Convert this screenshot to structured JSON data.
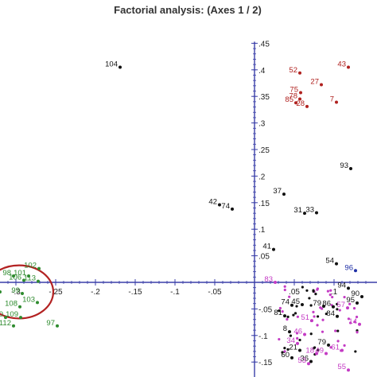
{
  "chart_data": {
    "type": "scatter",
    "title": "Factorial analysis: (Axes 1 / 2)",
    "xlabel": "",
    "ylabel": "",
    "xlim": [
      -0.32,
      0.145
    ],
    "ylim": [
      -0.15,
      0.45
    ],
    "x_ticks": [
      {
        "v": -0.3,
        "t": "-.3"
      },
      {
        "v": -0.25,
        "t": "-.25"
      },
      {
        "v": -0.2,
        "t": "-.2"
      },
      {
        "v": -0.15,
        "t": "-.15"
      },
      {
        "v": -0.1,
        "t": "-.1"
      },
      {
        "v": -0.05,
        "t": "-.05"
      },
      {
        "v": 0.05,
        "t": ".05"
      },
      {
        "v": 0.1,
        "t": ".1"
      }
    ],
    "y_ticks": [
      {
        "v": 0.45,
        "t": ".45"
      },
      {
        "v": 0.4,
        "t": ".4"
      },
      {
        "v": 0.35,
        "t": ".35"
      },
      {
        "v": 0.3,
        "t": ".3"
      },
      {
        "v": 0.25,
        "t": ".25"
      },
      {
        "v": 0.2,
        "t": ".2"
      },
      {
        "v": 0.15,
        "t": ".15"
      },
      {
        "v": 0.1,
        "t": ".1"
      },
      {
        "v": 0.05,
        "t": ".05"
      },
      {
        "v": -0.05,
        "t": "-.05"
      },
      {
        "v": -0.1,
        "t": "-.1"
      },
      {
        "v": -0.15,
        "t": "-.15"
      }
    ],
    "grid": false,
    "colors": {
      "black": "#111111",
      "red": "#b0211f",
      "green": "#2e8b2e",
      "magenta": "#c43bc4",
      "blue": "#1f2fa6",
      "axis": "#3a3fa8",
      "ellipse": "#b32222"
    },
    "ellipse": {
      "cx": -0.296,
      "cy": -0.018,
      "rx": 0.043,
      "ry": 0.05
    },
    "series": [
      {
        "color": "black",
        "points": [
          {
            "x": -0.169,
            "y": 0.405,
            "label": "104"
          },
          {
            "x": -0.044,
            "y": 0.146,
            "label": "42"
          },
          {
            "x": -0.028,
            "y": 0.138,
            "label": "74"
          },
          {
            "x": 0.024,
            "y": 0.062,
            "label": "41"
          },
          {
            "x": 0.037,
            "y": 0.166,
            "label": "37"
          },
          {
            "x": 0.063,
            "y": 0.13,
            "label": "31"
          },
          {
            "x": 0.078,
            "y": 0.131,
            "label": "33"
          },
          {
            "x": 0.121,
            "y": 0.214,
            "label": "93"
          },
          {
            "x": 0.103,
            "y": 0.035,
            "label": "54"
          },
          {
            "x": 0.118,
            "y": -0.011,
            "label": "94"
          },
          {
            "x": 0.135,
            "y": -0.027,
            "label": "90"
          },
          {
            "x": 0.129,
            "y": -0.039,
            "label": "95"
          },
          {
            "x": 0.038,
            "y": -0.063,
            "label": "81"
          },
          {
            "x": 0.047,
            "y": -0.043,
            "label": "74"
          },
          {
            "x": 0.06,
            "y": -0.042,
            "label": "45"
          },
          {
            "x": 0.087,
            "y": -0.045,
            "label": "79"
          },
          {
            "x": 0.099,
            "y": -0.046,
            "label": "86"
          },
          {
            "x": 0.104,
            "y": -0.064,
            "label": "84"
          },
          {
            "x": 0.044,
            "y": -0.093,
            "label": "8"
          },
          {
            "x": 0.093,
            "y": -0.118,
            "label": "79"
          },
          {
            "x": 0.047,
            "y": -0.142,
            "label": "60"
          },
          {
            "x": 0.057,
            "y": -0.128,
            "label": "21"
          },
          {
            "x": 0.071,
            "y": -0.149,
            "label": "36"
          }
        ]
      },
      {
        "color": "red",
        "points": [
          {
            "x": 0.057,
            "y": 0.394,
            "label": "52"
          },
          {
            "x": 0.118,
            "y": 0.405,
            "label": "43"
          },
          {
            "x": 0.084,
            "y": 0.372,
            "label": "27"
          },
          {
            "x": 0.058,
            "y": 0.357,
            "label": "75"
          },
          {
            "x": 0.057,
            "y": 0.345,
            "label": "78"
          },
          {
            "x": 0.052,
            "y": 0.338,
            "label": "85"
          },
          {
            "x": 0.066,
            "y": 0.331,
            "label": "28"
          },
          {
            "x": 0.103,
            "y": 0.339,
            "label": "7"
          }
        ]
      },
      {
        "color": "green",
        "points": [
          {
            "x": -0.271,
            "y": 0.026,
            "label": "102"
          },
          {
            "x": -0.303,
            "y": 0.012,
            "label": "98"
          },
          {
            "x": -0.284,
            "y": 0.012,
            "label": "101"
          },
          {
            "x": -0.29,
            "y": 0.004,
            "label": "106"
          },
          {
            "x": -0.272,
            "y": 0.002,
            "label": "113"
          },
          {
            "x": -0.32,
            "y": -0.018,
            "label": "3"
          },
          {
            "x": -0.292,
            "y": -0.021,
            "label": "99"
          },
          {
            "x": -0.273,
            "y": -0.038,
            "label": "103"
          },
          {
            "x": -0.295,
            "y": -0.046,
            "label": "108"
          },
          {
            "x": -0.313,
            "y": -0.066,
            "label": "120"
          },
          {
            "x": -0.294,
            "y": -0.066,
            "label": "109"
          },
          {
            "x": -0.303,
            "y": -0.082,
            "label": "112"
          },
          {
            "x": -0.322,
            "y": -0.084,
            "label": "20"
          },
          {
            "x": -0.248,
            "y": -0.082,
            "label": "97"
          }
        ]
      },
      {
        "color": "magenta",
        "points": [
          {
            "x": 0.026,
            "y": 0.0,
            "label": "83"
          },
          {
            "x": 0.117,
            "y": -0.048,
            "label": "57"
          },
          {
            "x": 0.132,
            "y": -0.079,
            "label": "14"
          },
          {
            "x": 0.072,
            "y": -0.072,
            "label": "51"
          },
          {
            "x": 0.063,
            "y": -0.098,
            "label": "46"
          },
          {
            "x": 0.054,
            "y": -0.115,
            "label": "34"
          },
          {
            "x": 0.078,
            "y": -0.134,
            "label": "18"
          },
          {
            "x": 0.09,
            "y": -0.134,
            "label": "49"
          },
          {
            "x": 0.11,
            "y": -0.128,
            "label": "61"
          },
          {
            "x": 0.068,
            "y": -0.153,
            "label": "53"
          },
          {
            "x": 0.118,
            "y": -0.165,
            "label": "55"
          }
        ]
      },
      {
        "color": "blue",
        "points": [
          {
            "x": 0.127,
            "y": 0.022,
            "label": "96"
          }
        ]
      }
    ]
  }
}
